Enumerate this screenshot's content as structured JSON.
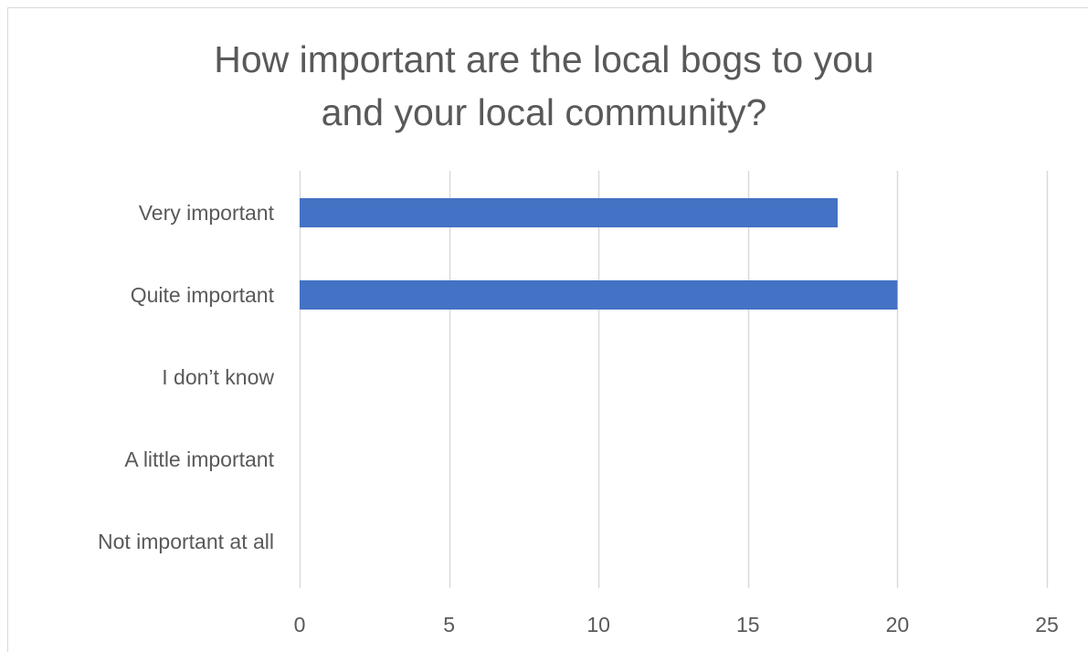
{
  "chart_data": {
    "type": "bar",
    "orientation": "horizontal",
    "title_lines": [
      "How important are the local bogs to you",
      "and your local community?"
    ],
    "categories": [
      "Very important",
      "Quite important",
      "I don’t know",
      "A little important",
      "Not important at all"
    ],
    "values": [
      18,
      20,
      0,
      0,
      0
    ],
    "xticks": [
      "0",
      "5",
      "10",
      "15",
      "20",
      "25"
    ],
    "xlim": [
      0,
      25
    ],
    "grid": true,
    "legend": "none",
    "bar_color": "#4472c4",
    "grid_color": "#d9d9d9",
    "text_color": "#595959"
  }
}
